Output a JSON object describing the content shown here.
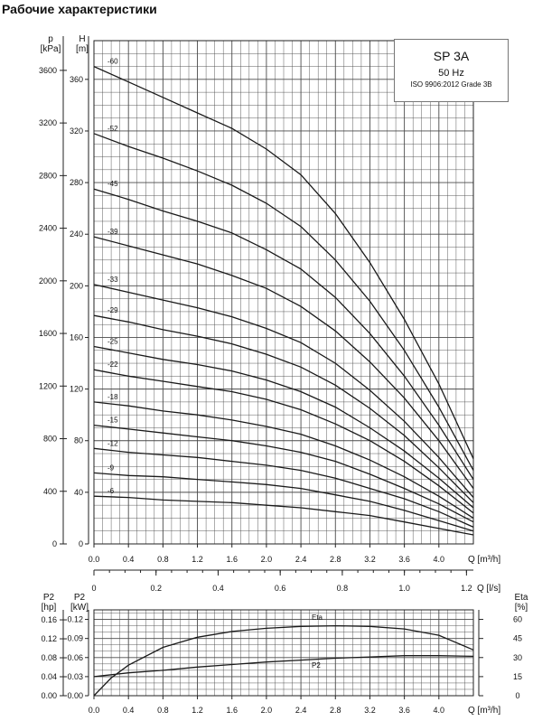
{
  "page_title": "Рабочие характеристики",
  "legend": {
    "model": "SP 3A",
    "frequency": "50 Hz",
    "standard": "ISO 9906:2012 Grade 3B"
  },
  "colors": {
    "grid": "#4a4a4a",
    "curve": "#1a1a1a",
    "text": "#111111"
  },
  "chart_data": [
    {
      "type": "line",
      "title": "",
      "xlabel": "Q [m³/h]",
      "x2label": "Q [l/s]",
      "ylabel_left_outer": "p\n[kPa]",
      "ylabel_left": "H\n[m]",
      "xlim": [
        0,
        4.4
      ],
      "ylim": [
        0,
        390
      ],
      "x_ticks": [
        "0.0",
        "0.4",
        "0.8",
        "1.2",
        "1.6",
        "2.0",
        "2.4",
        "2.8",
        "3.2",
        "3.6",
        "4.0"
      ],
      "x2_ticks": [
        "0",
        "0.2",
        "0.4",
        "0.6",
        "0.8",
        "1.0",
        "1.2"
      ],
      "y_ticks": [
        "0",
        "40",
        "80",
        "120",
        "160",
        "200",
        "240",
        "280",
        "320",
        "360"
      ],
      "p_ticks": [
        "0",
        "400",
        "800",
        "1200",
        "1600",
        "2000",
        "2400",
        "2800",
        "3200",
        "3600"
      ],
      "grid": true,
      "x": [
        0,
        0.4,
        0.8,
        1.2,
        1.6,
        2.0,
        2.4,
        2.8,
        3.2,
        3.6,
        4.0,
        4.4
      ],
      "series": [
        {
          "name": "-60",
          "values": [
            370,
            358,
            346,
            334,
            322,
            306,
            286,
            256,
            218,
            174,
            124,
            66
          ]
        },
        {
          "name": "-52",
          "values": [
            318,
            308,
            299,
            289,
            278,
            264,
            246,
            220,
            188,
            150,
            106,
            57
          ]
        },
        {
          "name": "-45",
          "values": [
            275,
            267,
            258,
            250,
            241,
            228,
            213,
            191,
            163,
            130,
            92,
            50
          ]
        },
        {
          "name": "-39",
          "values": [
            238,
            231,
            224,
            217,
            208,
            198,
            184,
            165,
            141,
            113,
            80,
            43
          ]
        },
        {
          "name": "-33",
          "values": [
            201,
            195,
            189,
            183,
            176,
            167,
            156,
            140,
            119,
            95,
            67,
            36
          ]
        },
        {
          "name": "-29",
          "values": [
            177,
            172,
            166,
            161,
            155,
            147,
            137,
            123,
            105,
            84,
            59,
            32
          ]
        },
        {
          "name": "-25",
          "values": [
            153,
            148,
            143,
            139,
            134,
            127,
            118,
            106,
            90,
            72,
            51,
            28
          ]
        },
        {
          "name": "-22",
          "values": [
            135,
            130,
            126,
            122,
            118,
            112,
            104,
            93,
            80,
            64,
            45,
            24
          ]
        },
        {
          "name": "-18",
          "values": [
            110,
            107,
            103,
            100,
            96,
            91,
            85,
            76,
            65,
            52,
            37,
            20
          ]
        },
        {
          "name": "-15",
          "values": [
            92,
            89,
            86,
            83,
            80,
            76,
            71,
            64,
            54,
            43,
            31,
            17
          ]
        },
        {
          "name": "-12",
          "values": [
            74,
            71,
            69,
            67,
            64,
            61,
            57,
            51,
            43,
            35,
            25,
            13
          ]
        },
        {
          "name": "-9",
          "values": [
            55,
            53,
            52,
            50,
            48,
            46,
            43,
            38,
            33,
            26,
            18,
            10
          ]
        },
        {
          "name": "-6",
          "values": [
            37,
            36,
            34,
            33,
            32,
            30,
            28,
            25,
            22,
            17,
            12,
            7
          ]
        }
      ]
    },
    {
      "type": "line",
      "title": "",
      "xlabel": "Q [m³/h]",
      "ylabel_left_outer": "P2\n[hp]",
      "ylabel_left": "P2\n[kW]",
      "ylabel_right": "Eta\n[%]",
      "xlim": [
        0,
        4.4
      ],
      "ylim": [
        0,
        0.135
      ],
      "x_ticks": [
        "0.0",
        "0.4",
        "0.8",
        "1.2",
        "1.6",
        "2.0",
        "2.4",
        "2.8",
        "3.2",
        "3.6",
        "4.0"
      ],
      "y_ticks": [
        "0.00",
        "0.03",
        "0.06",
        "0.09",
        "0.12"
      ],
      "hp_ticks": [
        "0.00",
        "0.04",
        "0.08",
        "0.12",
        "0.16"
      ],
      "eta_ticks": [
        "0",
        "15",
        "30",
        "45",
        "60"
      ],
      "grid": true,
      "series": [
        {
          "name": "Eta",
          "x": [
            0,
            0.2,
            0.4,
            0.8,
            1.2,
            1.6,
            2.0,
            2.4,
            2.8,
            3.2,
            3.6,
            4.0,
            4.4
          ],
          "values": [
            0,
            14,
            24,
            38,
            46,
            50.5,
            53,
            54.5,
            55,
            54.5,
            52.5,
            47.5,
            36
          ]
        },
        {
          "name": "P2",
          "x": [
            0,
            0.2,
            0.4,
            0.8,
            1.2,
            1.6,
            2.0,
            2.4,
            2.8,
            3.2,
            3.6,
            4.0,
            4.4
          ],
          "values": [
            0.03,
            0.033,
            0.036,
            0.04,
            0.045,
            0.049,
            0.053,
            0.056,
            0.059,
            0.061,
            0.063,
            0.063,
            0.062
          ]
        }
      ]
    }
  ]
}
